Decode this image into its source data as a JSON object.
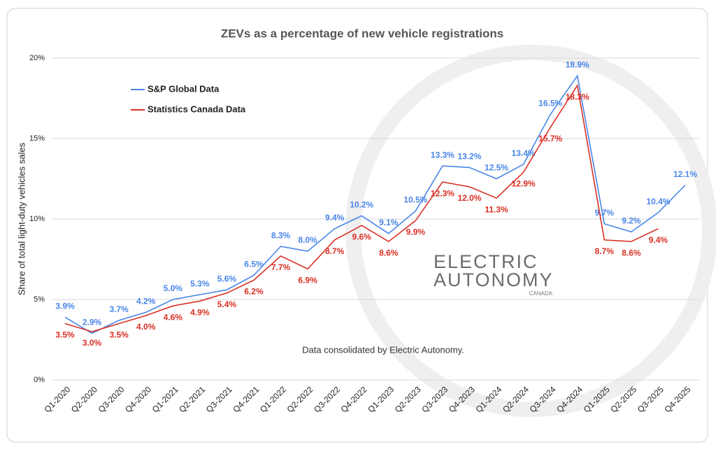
{
  "chart_data": {
    "type": "line",
    "title": "ZEVs as a percentage of new vehicle registrations",
    "y_label": "Share of total light-duty vehicles sales",
    "annotations": [
      "Data consolidated by Electric Autonomy.",
      "ELECTRIC",
      "AUTONOMY",
      "CANADA"
    ],
    "categories": [
      "Q1-2020",
      "Q2-2020",
      "Q3-2020",
      "Q4-2020",
      "Q1-2021",
      "Q2-2021",
      "Q3-2021",
      "Q4-2021",
      "Q1-2022",
      "Q2-2022",
      "Q3-2022",
      "Q4-2022",
      "Q1-2023",
      "Q2-2023",
      "Q3-2023",
      "Q4-2023",
      "Q1-2024",
      "Q2-2024",
      "Q3-2024",
      "Q4-2024",
      "Q1-2025",
      "Q2-2025",
      "Q3-2025",
      "Q4-2025"
    ],
    "series": [
      {
        "name": "S&P Global Data",
        "color": "#4a86e8",
        "values": [
          3.9,
          2.9,
          3.7,
          4.2,
          5.0,
          5.3,
          5.6,
          6.5,
          8.3,
          8.0,
          9.4,
          10.2,
          9.1,
          10.5,
          13.3,
          13.2,
          12.5,
          13.4,
          16.5,
          18.9,
          9.7,
          9.2,
          10.4,
          12.1
        ],
        "value_labels": [
          "3.9%",
          "2.9%",
          "3.7%",
          "4.2%",
          "5.0%",
          "5.3%",
          "5.6%",
          "6.5%",
          "8.3%",
          "8.0%",
          "9.4%",
          "10.2%",
          "9.1%",
          "10.5%",
          "13.3%",
          "13.2%",
          "12.5%",
          "13.4%",
          "16.5%",
          "18.9%",
          "9.7%",
          "9.2%",
          "10.4%",
          "12.1%"
        ]
      },
      {
        "name": "Statistics Canada Data",
        "color": "#d93025",
        "values": [
          3.5,
          3.0,
          3.5,
          4.0,
          4.6,
          4.9,
          5.4,
          6.2,
          7.7,
          6.9,
          8.7,
          9.6,
          8.6,
          9.9,
          12.3,
          12.0,
          11.3,
          12.9,
          15.7,
          18.3,
          8.7,
          8.6,
          9.4,
          null
        ],
        "value_labels": [
          "3.5%",
          "3.0%",
          "3.5%",
          "4.0%",
          "4.6%",
          "4.9%",
          "5.4%",
          "6.2%",
          "7.7%",
          "6.9%",
          "8.7%",
          "9.6%",
          "8.6%",
          "9.9%",
          "12.3%",
          "12.0%",
          "11.3%",
          "12.9%",
          "15.7%",
          "18.3%",
          "8.7%",
          "8.6%",
          "9.4%",
          null
        ]
      }
    ],
    "ylim": [
      0,
      20
    ],
    "yticks": [
      {
        "value": 0,
        "label": "0%"
      },
      {
        "value": 5,
        "label": "5%"
      },
      {
        "value": 10,
        "label": "10%"
      },
      {
        "value": 15,
        "label": "15%"
      },
      {
        "value": 20,
        "label": "20%"
      }
    ],
    "grid": true,
    "legend": "top-left"
  }
}
